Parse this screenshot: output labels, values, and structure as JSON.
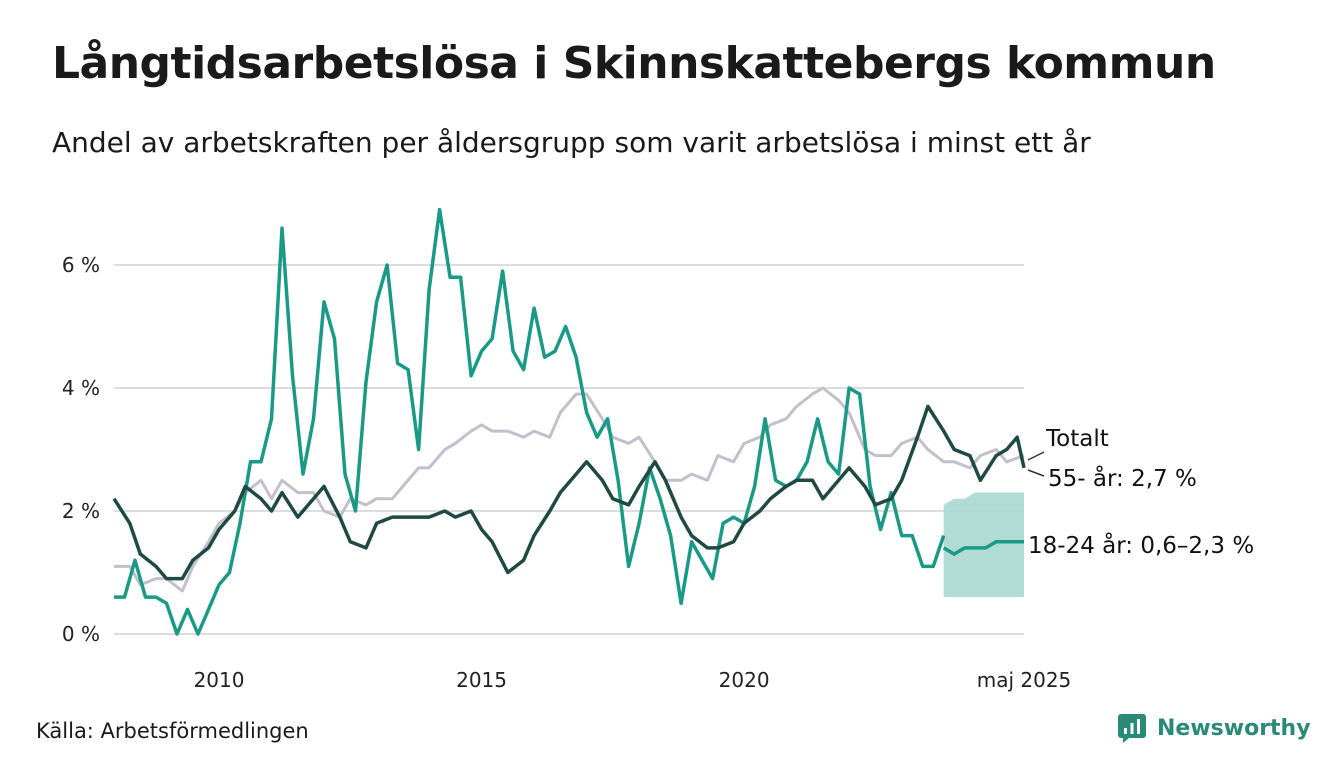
{
  "title": "Långtidsarbetslösa i Skinnskattebergs kommun",
  "subtitle": "Andel av arbetskraften per åldersgrupp som varit arbetslösa i minst ett år",
  "source": "Källa: Arbetsförmedlingen",
  "brand": {
    "name": "Newsworthy",
    "icon": "newsworthy-logo-icon",
    "color": "#2a8a78"
  },
  "colors": {
    "young": "#1a9a86",
    "old": "#1f4a44",
    "total": "#c3bfcc",
    "band": "#a8d8d1",
    "grid": "#dddddd"
  },
  "chart_data": {
    "type": "line",
    "x_axis": {
      "type": "time",
      "min": 2008.0,
      "max": 2025.33,
      "ticks": [
        2010,
        2015,
        2020,
        2025.33
      ],
      "tick_labels": [
        "2010",
        "2015",
        "2020",
        "maj 2025"
      ]
    },
    "y_axis": {
      "min": 0,
      "max": 7,
      "ticks": [
        0,
        2,
        4,
        6
      ],
      "tick_labels": [
        "0 %",
        "2 %",
        "4 %",
        "6 %"
      ],
      "unit": "%"
    },
    "grid": true,
    "series": [
      {
        "key": "total",
        "name": "Totalt",
        "end_label": "Totalt",
        "x": [
          2008.0,
          2008.3,
          2008.5,
          2008.8,
          2009.0,
          2009.3,
          2009.5,
          2009.8,
          2010.0,
          2010.3,
          2010.5,
          2010.8,
          2011.0,
          2011.2,
          2011.5,
          2011.8,
          2012.0,
          2012.3,
          2012.5,
          2012.8,
          2013.0,
          2013.3,
          2013.5,
          2013.8,
          2014.0,
          2014.3,
          2014.5,
          2014.8,
          2015.0,
          2015.2,
          2015.5,
          2015.8,
          2016.0,
          2016.3,
          2016.5,
          2016.8,
          2017.0,
          2017.3,
          2017.5,
          2017.8,
          2018.0,
          2018.3,
          2018.5,
          2018.8,
          2019.0,
          2019.3,
          2019.5,
          2019.8,
          2020.0,
          2020.3,
          2020.5,
          2020.8,
          2021.0,
          2021.3,
          2021.5,
          2021.8,
          2022.0,
          2022.3,
          2022.5,
          2022.8,
          2023.0,
          2023.3,
          2023.5,
          2023.8,
          2024.0,
          2024.3,
          2024.5,
          2024.8,
          2025.0,
          2025.33
        ],
        "y": [
          1.1,
          1.1,
          0.8,
          0.9,
          0.9,
          0.7,
          1.1,
          1.5,
          1.8,
          2.0,
          2.3,
          2.5,
          2.2,
          2.5,
          2.3,
          2.3,
          2.0,
          1.9,
          2.2,
          2.1,
          2.2,
          2.2,
          2.4,
          2.7,
          2.7,
          3.0,
          3.1,
          3.3,
          3.4,
          3.3,
          3.3,
          3.2,
          3.3,
          3.2,
          3.6,
          3.9,
          3.9,
          3.5,
          3.2,
          3.1,
          3.2,
          2.8,
          2.5,
          2.5,
          2.6,
          2.5,
          2.9,
          2.8,
          3.1,
          3.2,
          3.4,
          3.5,
          3.7,
          3.9,
          4.0,
          3.8,
          3.6,
          3.0,
          2.9,
          2.9,
          3.1,
          3.2,
          3.0,
          2.8,
          2.8,
          2.7,
          2.9,
          3.0,
          2.8,
          2.9
        ]
      },
      {
        "key": "old",
        "name": "55- år",
        "end_label": "55- år: 2,7 %",
        "x": [
          2008.0,
          2008.3,
          2008.5,
          2008.8,
          2009.0,
          2009.3,
          2009.5,
          2009.8,
          2010.0,
          2010.3,
          2010.5,
          2010.8,
          2011.0,
          2011.2,
          2011.5,
          2011.8,
          2012.0,
          2012.3,
          2012.5,
          2012.8,
          2013.0,
          2013.3,
          2013.5,
          2013.8,
          2014.0,
          2014.3,
          2014.5,
          2014.8,
          2015.0,
          2015.2,
          2015.5,
          2015.8,
          2016.0,
          2016.3,
          2016.5,
          2016.8,
          2017.0,
          2017.3,
          2017.5,
          2017.8,
          2018.0,
          2018.3,
          2018.5,
          2018.8,
          2019.0,
          2019.3,
          2019.5,
          2019.8,
          2020.0,
          2020.3,
          2020.5,
          2020.8,
          2021.0,
          2021.3,
          2021.5,
          2021.8,
          2022.0,
          2022.3,
          2022.5,
          2022.8,
          2023.0,
          2023.3,
          2023.5,
          2023.8,
          2024.0,
          2024.3,
          2024.5,
          2024.8,
          2025.0,
          2025.2,
          2025.33
        ],
        "y": [
          2.2,
          1.8,
          1.3,
          1.1,
          0.9,
          0.9,
          1.2,
          1.4,
          1.7,
          2.0,
          2.4,
          2.2,
          2.0,
          2.3,
          1.9,
          2.2,
          2.4,
          1.9,
          1.5,
          1.4,
          1.8,
          1.9,
          1.9,
          1.9,
          1.9,
          2.0,
          1.9,
          2.0,
          1.7,
          1.5,
          1.0,
          1.2,
          1.6,
          2.0,
          2.3,
          2.6,
          2.8,
          2.5,
          2.2,
          2.1,
          2.4,
          2.8,
          2.5,
          1.9,
          1.6,
          1.4,
          1.4,
          1.5,
          1.8,
          2.0,
          2.2,
          2.4,
          2.5,
          2.5,
          2.2,
          2.5,
          2.7,
          2.4,
          2.1,
          2.2,
          2.5,
          3.2,
          3.7,
          3.3,
          3.0,
          2.9,
          2.5,
          2.9,
          3.0,
          3.2,
          2.7
        ]
      },
      {
        "key": "young",
        "name": "18-24 år",
        "end_label": "18-24 år: 0,6–2,3 %",
        "x": [
          2008.0,
          2008.2,
          2008.4,
          2008.6,
          2008.8,
          2009.0,
          2009.2,
          2009.4,
          2009.6,
          2009.8,
          2010.0,
          2010.2,
          2010.4,
          2010.6,
          2010.8,
          2011.0,
          2011.2,
          2011.4,
          2011.6,
          2011.8,
          2012.0,
          2012.2,
          2012.4,
          2012.6,
          2012.8,
          2013.0,
          2013.2,
          2013.4,
          2013.6,
          2013.8,
          2014.0,
          2014.2,
          2014.4,
          2014.6,
          2014.8,
          2015.0,
          2015.2,
          2015.4,
          2015.6,
          2015.8,
          2016.0,
          2016.2,
          2016.4,
          2016.6,
          2016.8,
          2017.0,
          2017.2,
          2017.4,
          2017.6,
          2017.8,
          2018.0,
          2018.2,
          2018.4,
          2018.6,
          2018.8,
          2019.0,
          2019.2,
          2019.4,
          2019.6,
          2019.8,
          2020.0,
          2020.2,
          2020.4,
          2020.6,
          2020.8,
          2021.0,
          2021.2,
          2021.4,
          2021.6,
          2021.8,
          2022.0,
          2022.2,
          2022.4,
          2022.6,
          2022.8,
          2023.0,
          2023.2,
          2023.4,
          2023.6,
          2023.8
        ],
        "y": [
          0.6,
          0.6,
          1.2,
          0.6,
          0.6,
          0.5,
          0.0,
          0.4,
          0.0,
          0.4,
          0.8,
          1.0,
          1.8,
          2.8,
          2.8,
          3.5,
          6.6,
          4.2,
          2.6,
          3.5,
          5.4,
          4.8,
          2.6,
          2.0,
          4.1,
          5.4,
          6.0,
          4.4,
          4.3,
          3.0,
          5.6,
          6.9,
          5.8,
          5.8,
          4.2,
          4.6,
          4.8,
          5.9,
          4.6,
          4.3,
          5.3,
          4.5,
          4.6,
          5.0,
          4.5,
          3.6,
          3.2,
          3.5,
          2.5,
          1.1,
          1.8,
          2.7,
          2.2,
          1.6,
          0.5,
          1.5,
          1.2,
          0.9,
          1.8,
          1.9,
          1.8,
          2.4,
          3.5,
          2.5,
          2.4,
          2.5,
          2.8,
          3.5,
          2.8,
          2.6,
          4.0,
          3.9,
          2.4,
          1.7,
          2.3,
          1.6,
          1.6,
          1.1,
          1.1,
          1.6
        ]
      }
    ],
    "range_band": {
      "series_key": "young",
      "x": [
        2023.8,
        2024.0,
        2024.2,
        2024.4,
        2024.6,
        2024.8,
        2025.0,
        2025.33
      ],
      "low": [
        0.6,
        0.6,
        0.6,
        0.6,
        0.6,
        0.6,
        0.6,
        0.6
      ],
      "high": [
        2.1,
        2.2,
        2.2,
        2.3,
        2.3,
        2.3,
        2.3,
        2.3
      ],
      "mid": [
        1.4,
        1.3,
        1.4,
        1.4,
        1.4,
        1.5,
        1.5,
        1.5
      ]
    }
  }
}
